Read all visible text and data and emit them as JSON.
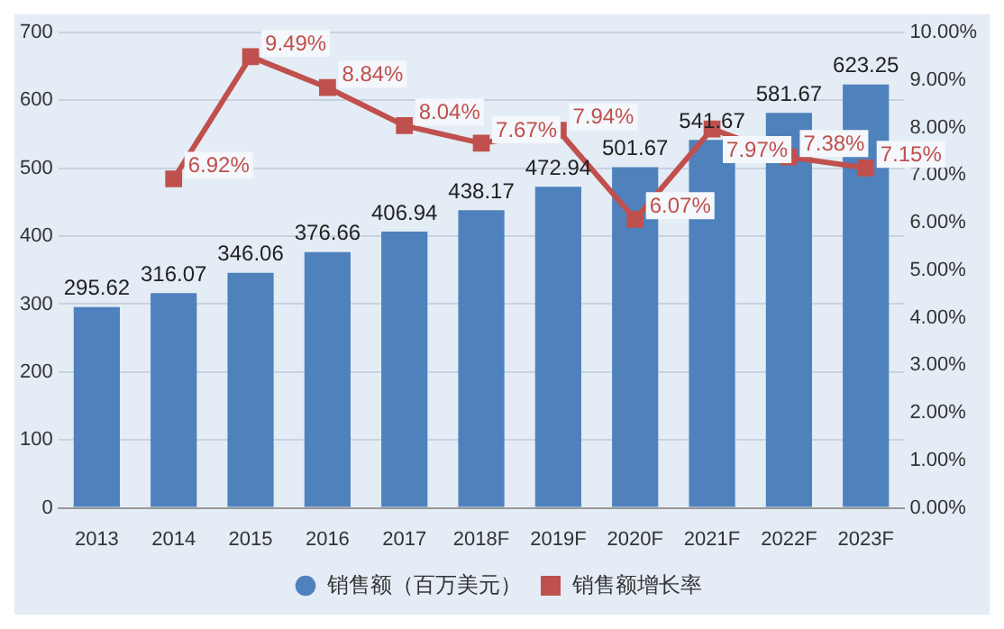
{
  "chart_data": {
    "type": "bar",
    "categories": [
      "2013",
      "2014",
      "2015",
      "2016",
      "2017",
      "2018F",
      "2019F",
      "2020F",
      "2021F",
      "2022F",
      "2023F"
    ],
    "series": [
      {
        "name": "销售额（百万美元）",
        "color": "#4f81bd",
        "values": [
          295.62,
          316.07,
          346.06,
          376.66,
          406.94,
          438.17,
          472.94,
          501.67,
          541.67,
          581.67,
          623.25
        ],
        "value_labels": [
          "295.62",
          "316.07",
          "346.06",
          "376.66",
          "406.94",
          "438.17",
          "472.94",
          "501.67",
          "541.67",
          "581.67",
          "623.25"
        ]
      },
      {
        "name": "销售额增长率",
        "type": "line",
        "axis": "y2",
        "color": "#c0504d",
        "values": [
          null,
          6.92,
          9.49,
          8.84,
          8.04,
          7.67,
          7.94,
          6.07,
          7.97,
          7.38,
          7.15
        ],
        "value_labels": [
          null,
          "6.92%",
          "9.49%",
          "8.84%",
          "8.04%",
          "7.67%",
          "7.94%",
          "6.07%",
          "7.97%",
          "7.38%",
          "7.15%"
        ]
      }
    ],
    "ylim": [
      0,
      700
    ],
    "yticks": [
      0,
      100,
      200,
      300,
      400,
      500,
      600,
      700
    ],
    "y2lim": [
      0,
      10
    ],
    "y2ticks": [
      {
        "value": 0,
        "label": "0.00%"
      },
      {
        "value": 1,
        "label": "1.00%"
      },
      {
        "value": 2,
        "label": "2.00%"
      },
      {
        "value": 3,
        "label": "3.00%"
      },
      {
        "value": 4,
        "label": "4.00%"
      },
      {
        "value": 5,
        "label": "5.00%"
      },
      {
        "value": 6,
        "label": "6.00%"
      },
      {
        "value": 7,
        "label": "7.00%"
      },
      {
        "value": 8,
        "label": "8.00%"
      },
      {
        "value": 9,
        "label": "9.00%"
      },
      {
        "value": 10,
        "label": "10.00%"
      }
    ],
    "grid": "y",
    "legend": "bottom",
    "marker": "square"
  }
}
